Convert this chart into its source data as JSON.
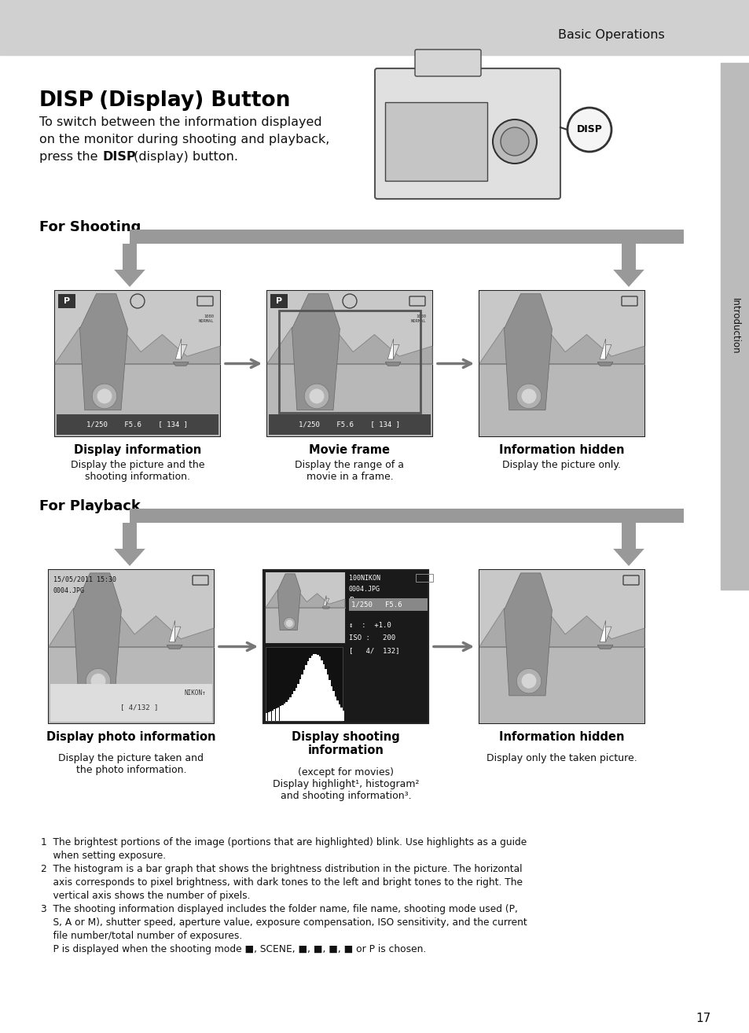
{
  "page_bg": "#ffffff",
  "header_bg": "#cccccc",
  "header_text": "Basic Operations",
  "sidebar_bg": "#bbbbbb",
  "title_bold": "DISP",
  "title_rest": " (Display) Button",
  "intro_line1": "To switch between the information displayed",
  "intro_line2": "on the monitor during shooting and playback,",
  "intro_line3a": "press the ",
  "intro_line3b": "DISP",
  "intro_line3c": " (display) button.",
  "section1_title": "For Shooting",
  "section2_title": "For Playback",
  "shooting_labels": [
    "Display information",
    "Movie frame",
    "Information hidden"
  ],
  "shooting_desc": [
    "Display the picture and the\nshooting information.",
    "Display the range of a\nmovie in a frame.",
    "Display the picture only."
  ],
  "playback_labels": [
    "Display photo information",
    "Display shooting\ninformation",
    "Information hidden"
  ],
  "playback_desc": [
    "Display the picture taken and\nthe photo information.",
    "(except for movies)\nDisplay highlight¹, histogram²\nand shooting information³.",
    "Display only the taken picture."
  ],
  "page_number": "17",
  "arrow_color": "#888888",
  "dark_screen_bg": "#1a1a1a"
}
